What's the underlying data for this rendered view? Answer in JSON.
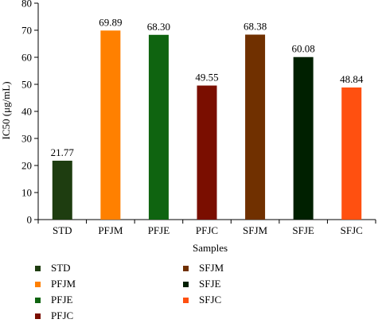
{
  "chart_data": {
    "type": "bar",
    "categories": [
      "STD",
      "PFJM",
      "PFJE",
      "PFJC",
      "SFJM",
      "SFJE",
      "SFJC"
    ],
    "values": [
      21.77,
      69.89,
      68.3,
      49.55,
      68.38,
      60.08,
      48.84
    ],
    "value_labels": [
      "21.77",
      "69.89",
      "68.30",
      "49.55",
      "68.38",
      "60.08",
      "48.84"
    ],
    "colors": [
      "#1e3d10",
      "#ff8000",
      "#0f6410",
      "#7a0e00",
      "#703000",
      "#002000",
      "#ff5010"
    ],
    "xlabel": "Samples",
    "ylabel": "IC50 (μg/mL)",
    "ylim": [
      0,
      80
    ],
    "yticks": [
      0,
      10,
      20,
      30,
      40,
      50,
      60,
      70,
      80
    ],
    "grid": false,
    "legend": {
      "placement": "bottom",
      "columns": 2,
      "entries": [
        "STD",
        "PFJM",
        "PFJE",
        "PFJC",
        "SFJM",
        "SFJE",
        "SFJC"
      ]
    }
  }
}
